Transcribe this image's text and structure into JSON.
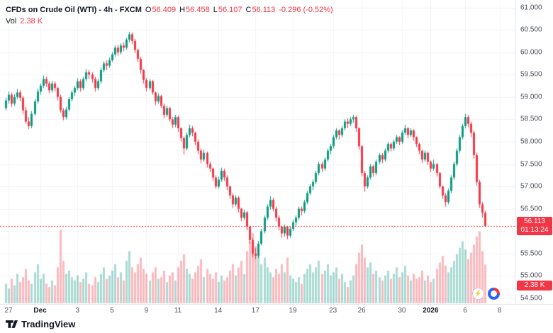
{
  "header": {
    "symbol_title": "CFDs on Crude Oil (WTI) - 4h - FXCM",
    "ohlc": {
      "o_label": "O",
      "o": "56.409",
      "h_label": "H",
      "h": "56.458",
      "l_label": "L",
      "l": "56.107",
      "c_label": "C",
      "c": "56.113",
      "change": "-0.296 (-0.52%)"
    },
    "volume_label": "Vol",
    "volume_value": "2.38 K"
  },
  "price_axis": {
    "current_price_label": "56.113",
    "countdown": "01:13:24",
    "volume_badge": "2.38 K"
  },
  "footer": {
    "logo_text": "TradingView"
  },
  "icons": {
    "bolt": "⚡"
  },
  "colors": {
    "up": "#089981",
    "down": "#f23645",
    "vol_up": "rgba(8,153,129,0.35)",
    "vol_down": "rgba(242,54,69,0.35)",
    "grid": "#f0f3fa",
    "axis_text": "#4a4e59",
    "badge_bg": "#f23645",
    "price_line": "#f23645"
  },
  "chart_data": {
    "type": "candlestick",
    "title": "CFDs on Crude Oil (WTI)",
    "interval": "4h",
    "exchange": "FXCM",
    "ylim": [
      54.5,
      61.0
    ],
    "last_price": 56.113,
    "last_volume_k": 2.38,
    "y_ticks": [
      "61.000",
      "60.500",
      "60.000",
      "59.500",
      "59.000",
      "58.500",
      "58.000",
      "57.500",
      "57.000",
      "56.500",
      "56.000",
      "55.500",
      "55.000",
      "54.500"
    ],
    "x_labels": [
      {
        "text": "27",
        "index": 1
      },
      {
        "text": "Dec",
        "index": 12,
        "bold": true
      },
      {
        "text": "3",
        "index": 25
      },
      {
        "text": "5",
        "index": 37
      },
      {
        "text": "9",
        "index": 49
      },
      {
        "text": "11",
        "index": 60
      },
      {
        "text": "14",
        "index": 74
      },
      {
        "text": "17",
        "index": 87
      },
      {
        "text": "19",
        "index": 100
      },
      {
        "text": "23",
        "index": 114
      },
      {
        "text": "26",
        "index": 124
      },
      {
        "text": "30",
        "index": 138
      },
      {
        "text": "2026",
        "index": 148,
        "bold": true
      },
      {
        "text": "6",
        "index": 160
      },
      {
        "text": "8",
        "index": 172
      }
    ],
    "candles": [
      [
        58.75,
        58.98,
        58.7,
        58.92
      ],
      [
        58.92,
        59.12,
        58.85,
        59.05
      ],
      [
        59.05,
        59.1,
        58.78,
        58.85
      ],
      [
        58.85,
        59.06,
        58.8,
        59.0
      ],
      [
        59.0,
        59.18,
        58.95,
        59.1
      ],
      [
        59.1,
        59.15,
        58.9,
        58.98
      ],
      [
        58.98,
        59.02,
        58.62,
        58.7
      ],
      [
        58.7,
        58.78,
        58.4,
        58.45
      ],
      [
        58.45,
        58.55,
        58.28,
        58.35
      ],
      [
        58.35,
        58.68,
        58.3,
        58.62
      ],
      [
        58.62,
        58.95,
        58.58,
        58.9
      ],
      [
        58.9,
        59.18,
        58.85,
        59.12
      ],
      [
        59.12,
        59.3,
        59.05,
        59.25
      ],
      [
        59.25,
        59.48,
        59.2,
        59.4
      ],
      [
        59.4,
        59.45,
        59.22,
        59.3
      ],
      [
        59.3,
        59.35,
        59.08,
        59.15
      ],
      [
        59.15,
        59.36,
        59.1,
        59.3
      ],
      [
        59.3,
        59.35,
        59.12,
        59.2
      ],
      [
        59.2,
        59.22,
        58.92,
        59.0
      ],
      [
        59.0,
        59.05,
        58.65,
        58.7
      ],
      [
        58.7,
        58.75,
        58.48,
        58.55
      ],
      [
        58.55,
        58.78,
        58.5,
        58.72
      ],
      [
        58.72,
        59.0,
        58.68,
        58.95
      ],
      [
        58.95,
        59.15,
        58.9,
        59.1
      ],
      [
        59.1,
        59.25,
        59.02,
        59.2
      ],
      [
        59.2,
        59.42,
        59.15,
        59.35
      ],
      [
        59.35,
        59.4,
        59.12,
        59.2
      ],
      [
        59.2,
        59.45,
        59.15,
        59.4
      ],
      [
        59.4,
        59.62,
        59.35,
        59.55
      ],
      [
        59.55,
        59.6,
        59.4,
        59.5
      ],
      [
        59.5,
        59.55,
        59.32,
        59.4
      ],
      [
        59.4,
        59.45,
        59.12,
        59.2
      ],
      [
        59.2,
        59.4,
        59.15,
        59.35
      ],
      [
        59.35,
        59.65,
        59.3,
        59.6
      ],
      [
        59.6,
        59.8,
        59.55,
        59.75
      ],
      [
        59.75,
        59.82,
        59.6,
        59.7
      ],
      [
        59.7,
        59.88,
        59.65,
        59.82
      ],
      [
        59.82,
        60.0,
        59.78,
        59.95
      ],
      [
        59.95,
        60.15,
        59.9,
        60.1
      ],
      [
        60.1,
        60.16,
        59.92,
        60.0
      ],
      [
        60.0,
        60.2,
        59.95,
        60.15
      ],
      [
        60.15,
        60.22,
        60.02,
        60.1
      ],
      [
        60.1,
        60.32,
        60.05,
        60.28
      ],
      [
        60.28,
        60.45,
        60.22,
        60.4
      ],
      [
        60.4,
        60.44,
        60.18,
        60.25
      ],
      [
        60.25,
        60.3,
        59.98,
        60.05
      ],
      [
        60.05,
        60.08,
        59.78,
        59.85
      ],
      [
        59.85,
        59.9,
        59.52,
        59.6
      ],
      [
        59.6,
        59.62,
        59.3,
        59.38
      ],
      [
        59.38,
        59.42,
        59.12,
        59.2
      ],
      [
        59.2,
        59.4,
        59.15,
        59.35
      ],
      [
        59.35,
        59.38,
        59.05,
        59.1
      ],
      [
        59.1,
        59.12,
        58.82,
        58.9
      ],
      [
        58.9,
        59.08,
        58.85,
        59.02
      ],
      [
        59.02,
        59.05,
        58.75,
        58.8
      ],
      [
        58.8,
        58.85,
        58.52,
        58.6
      ],
      [
        58.6,
        58.8,
        58.55,
        58.75
      ],
      [
        58.75,
        58.78,
        58.45,
        58.5
      ],
      [
        58.5,
        58.55,
        58.3,
        58.38
      ],
      [
        58.38,
        58.6,
        58.32,
        58.55
      ],
      [
        58.55,
        58.58,
        58.22,
        58.3
      ],
      [
        58.3,
        58.32,
        58.0,
        58.08
      ],
      [
        58.08,
        58.12,
        57.72,
        57.85
      ],
      [
        57.85,
        58.2,
        57.8,
        58.15
      ],
      [
        58.15,
        58.38,
        58.1,
        58.3
      ],
      [
        58.3,
        58.35,
        58.12,
        58.2
      ],
      [
        58.2,
        58.22,
        57.92,
        58.0
      ],
      [
        58.0,
        58.05,
        57.72,
        57.8
      ],
      [
        57.8,
        57.85,
        57.52,
        57.6
      ],
      [
        57.6,
        57.82,
        57.55,
        57.75
      ],
      [
        57.75,
        57.78,
        57.42,
        57.5
      ],
      [
        57.5,
        57.55,
        57.32,
        57.4
      ],
      [
        57.4,
        57.42,
        57.12,
        57.2
      ],
      [
        57.2,
        57.25,
        56.95,
        57.0
      ],
      [
        57.0,
        57.22,
        56.95,
        57.15
      ],
      [
        57.15,
        57.42,
        57.1,
        57.35
      ],
      [
        57.35,
        57.4,
        57.12,
        57.2
      ],
      [
        57.2,
        57.25,
        56.92,
        57.0
      ],
      [
        57.0,
        57.02,
        56.72,
        56.8
      ],
      [
        56.8,
        56.85,
        56.52,
        56.6
      ],
      [
        56.6,
        56.8,
        56.55,
        56.75
      ],
      [
        56.75,
        56.78,
        56.42,
        56.5
      ],
      [
        56.5,
        56.52,
        56.22,
        56.3
      ],
      [
        56.3,
        56.48,
        56.25,
        56.42
      ],
      [
        56.42,
        56.45,
        56.02,
        56.1
      ],
      [
        56.1,
        56.12,
        55.72,
        55.8
      ],
      [
        55.8,
        55.85,
        55.42,
        55.5
      ],
      [
        55.5,
        55.62,
        55.38,
        55.45
      ],
      [
        55.45,
        55.78,
        55.4,
        55.72
      ],
      [
        55.72,
        56.05,
        55.68,
        56.0
      ],
      [
        56.0,
        56.35,
        55.95,
        56.3
      ],
      [
        56.3,
        56.6,
        56.25,
        56.55
      ],
      [
        56.55,
        56.78,
        56.48,
        56.7
      ],
      [
        56.7,
        56.75,
        56.45,
        56.5
      ],
      [
        56.5,
        56.55,
        56.22,
        56.3
      ],
      [
        56.3,
        56.35,
        56.02,
        56.1
      ],
      [
        56.1,
        56.12,
        55.85,
        55.95
      ],
      [
        55.95,
        56.15,
        55.88,
        56.1
      ],
      [
        56.1,
        56.12,
        55.82,
        55.9
      ],
      [
        55.9,
        56.1,
        55.85,
        56.05
      ],
      [
        56.05,
        56.25,
        56.0,
        56.2
      ],
      [
        56.2,
        56.35,
        56.12,
        56.3
      ],
      [
        56.3,
        56.55,
        56.25,
        56.5
      ],
      [
        56.5,
        56.55,
        56.35,
        56.45
      ],
      [
        56.45,
        56.7,
        56.4,
        56.65
      ],
      [
        56.65,
        56.9,
        56.6,
        56.85
      ],
      [
        56.85,
        57.05,
        56.8,
        57.0
      ],
      [
        57.0,
        57.15,
        56.92,
        57.1
      ],
      [
        57.1,
        57.35,
        57.05,
        57.3
      ],
      [
        57.3,
        57.55,
        57.25,
        57.5
      ],
      [
        57.5,
        57.55,
        57.32,
        57.4
      ],
      [
        57.4,
        57.65,
        57.35,
        57.6
      ],
      [
        57.6,
        57.85,
        57.55,
        57.8
      ],
      [
        57.8,
        57.95,
        57.72,
        57.9
      ],
      [
        57.9,
        58.15,
        57.85,
        58.1
      ],
      [
        58.1,
        58.3,
        58.05,
        58.25
      ],
      [
        58.25,
        58.28,
        58.05,
        58.15
      ],
      [
        58.15,
        58.35,
        58.1,
        58.3
      ],
      [
        58.3,
        58.5,
        58.25,
        58.45
      ],
      [
        58.45,
        58.52,
        58.3,
        58.4
      ],
      [
        58.4,
        58.55,
        58.35,
        58.5
      ],
      [
        58.5,
        58.6,
        58.42,
        58.55
      ],
      [
        58.55,
        58.58,
        58.22,
        58.3
      ],
      [
        58.3,
        58.32,
        57.82,
        57.9
      ],
      [
        57.9,
        57.92,
        57.22,
        57.3
      ],
      [
        57.3,
        57.35,
        56.88,
        57.0
      ],
      [
        57.0,
        57.25,
        56.95,
        57.2
      ],
      [
        57.2,
        57.5,
        57.15,
        57.45
      ],
      [
        57.45,
        57.48,
        57.22,
        57.3
      ],
      [
        57.3,
        57.6,
        57.25,
        57.55
      ],
      [
        57.55,
        57.75,
        57.5,
        57.7
      ],
      [
        57.7,
        57.75,
        57.52,
        57.6
      ],
      [
        57.6,
        57.85,
        57.55,
        57.8
      ],
      [
        57.8,
        58.0,
        57.75,
        57.95
      ],
      [
        57.95,
        57.98,
        57.78,
        57.85
      ],
      [
        57.85,
        58.05,
        57.8,
        58.0
      ],
      [
        58.0,
        58.15,
        57.95,
        58.1
      ],
      [
        58.1,
        58.12,
        57.92,
        58.0
      ],
      [
        58.0,
        58.25,
        57.95,
        58.2
      ],
      [
        58.2,
        58.38,
        58.15,
        58.3
      ],
      [
        58.3,
        58.32,
        58.08,
        58.15
      ],
      [
        58.15,
        58.3,
        58.1,
        58.25
      ],
      [
        58.25,
        58.28,
        58.02,
        58.1
      ],
      [
        58.1,
        58.12,
        57.88,
        57.95
      ],
      [
        57.95,
        57.98,
        57.72,
        57.8
      ],
      [
        57.8,
        57.82,
        57.52,
        57.6
      ],
      [
        57.6,
        57.8,
        57.55,
        57.75
      ],
      [
        57.75,
        57.78,
        57.48,
        57.55
      ],
      [
        57.55,
        57.58,
        57.32,
        57.4
      ],
      [
        57.4,
        57.6,
        57.35,
        57.5
      ],
      [
        57.5,
        57.52,
        57.22,
        57.3
      ],
      [
        57.3,
        57.32,
        56.95,
        57.0
      ],
      [
        57.0,
        57.02,
        56.72,
        56.8
      ],
      [
        56.8,
        56.85,
        56.55,
        56.65
      ],
      [
        56.65,
        56.95,
        56.6,
        56.9
      ],
      [
        56.9,
        57.25,
        56.85,
        57.2
      ],
      [
        57.2,
        57.55,
        57.15,
        57.5
      ],
      [
        57.5,
        57.85,
        57.45,
        57.8
      ],
      [
        57.8,
        58.15,
        57.75,
        58.1
      ],
      [
        58.1,
        58.4,
        58.05,
        58.35
      ],
      [
        58.35,
        58.62,
        58.3,
        58.55
      ],
      [
        58.55,
        58.6,
        58.32,
        58.4
      ],
      [
        58.4,
        58.45,
        58.1,
        58.2
      ],
      [
        58.2,
        58.25,
        57.62,
        57.7
      ],
      [
        57.7,
        57.75,
        57.02,
        57.1
      ],
      [
        57.1,
        57.15,
        56.52,
        56.6
      ],
      [
        56.6,
        56.65,
        56.3,
        56.409
      ],
      [
        56.409,
        56.458,
        56.107,
        56.113
      ]
    ],
    "volumes_k": [
      1.2,
      0.9,
      1.5,
      1.1,
      1.8,
      1.3,
      1.6,
      2.1,
      1.4,
      1.2,
      1.9,
      2.4,
      1.5,
      1.8,
      1.2,
      1.0,
      1.4,
      1.1,
      2.2,
      4.5,
      2.6,
      1.8,
      2.0,
      1.6,
      1.4,
      1.7,
      1.3,
      1.5,
      1.9,
      1.2,
      1.1,
      1.6,
      1.3,
      1.8,
      2.2,
      1.5,
      1.7,
      2.0,
      2.4,
      1.6,
      1.9,
      1.4,
      2.6,
      3.2,
      2.2,
      1.9,
      2.4,
      2.8,
      2.1,
      1.8,
      1.4,
      1.9,
      2.2,
      1.5,
      1.6,
      2.0,
      1.3,
      1.7,
      1.9,
      1.4,
      2.2,
      2.6,
      3.0,
      2.1,
      1.8,
      1.5,
      1.9,
      2.3,
      2.7,
      1.6,
      2.1,
      1.8,
      1.5,
      1.9,
      1.3,
      1.7,
      1.4,
      1.6,
      2.0,
      2.4,
      1.7,
      2.2,
      2.6,
      1.8,
      3.2,
      3.8,
      4.3,
      3.5,
      2.9,
      2.4,
      2.8,
      2.2,
      1.9,
      1.6,
      2.1,
      1.8,
      2.4,
      1.9,
      2.8,
      1.7,
      1.5,
      1.3,
      1.6,
      1.2,
      1.8,
      2.1,
      2.4,
      1.9,
      2.2,
      2.6,
      1.8,
      2.0,
      2.4,
      1.7,
      1.9,
      2.2,
      1.5,
      1.8,
      1.3,
      1.0,
      1.4,
      1.7,
      2.4,
      3.1,
      3.6,
      2.8,
      2.2,
      2.5,
      1.8,
      2.0,
      1.6,
      1.4,
      1.7,
      2.0,
      1.5,
      1.8,
      2.2,
      1.6,
      1.9,
      2.3,
      1.7,
      1.4,
      1.8,
      1.5,
      1.6,
      2.0,
      1.4,
      1.7,
      1.3,
      1.5,
      2.1,
      2.5,
      2.9,
      2.3,
      1.9,
      2.2,
      2.6,
      3.0,
      3.4,
      3.8,
      3.3,
      2.7,
      3.1,
      3.6,
      4.1,
      4.4,
      3.2,
      2.38
    ]
  }
}
